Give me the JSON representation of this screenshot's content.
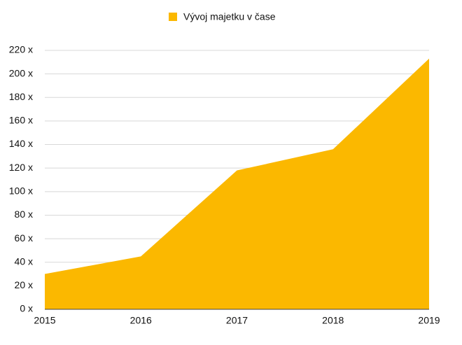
{
  "chart_data": {
    "type": "area",
    "categories": [
      "2015",
      "2016",
      "2017",
      "2018",
      "2019"
    ],
    "series": [
      {
        "name": "Vývoj majetku v čase",
        "color": "#fbb800",
        "values": [
          30,
          45,
          118,
          136,
          213
        ]
      }
    ],
    "ylim": [
      0,
      220
    ],
    "yticks": [
      {
        "value": 0,
        "label": "0 x"
      },
      {
        "value": 20,
        "label": "20 x"
      },
      {
        "value": 40,
        "label": "40 x"
      },
      {
        "value": 60,
        "label": "60 x"
      },
      {
        "value": 80,
        "label": "80 x"
      },
      {
        "value": 100,
        "label": "100 x"
      },
      {
        "value": 120,
        "label": "120 x"
      },
      {
        "value": 140,
        "label": "140 x"
      },
      {
        "value": 160,
        "label": "160 x"
      },
      {
        "value": 180,
        "label": "180 x"
      },
      {
        "value": 200,
        "label": "200 x"
      },
      {
        "value": 220,
        "label": "220 x"
      }
    ],
    "grid": true,
    "legend": "top"
  }
}
